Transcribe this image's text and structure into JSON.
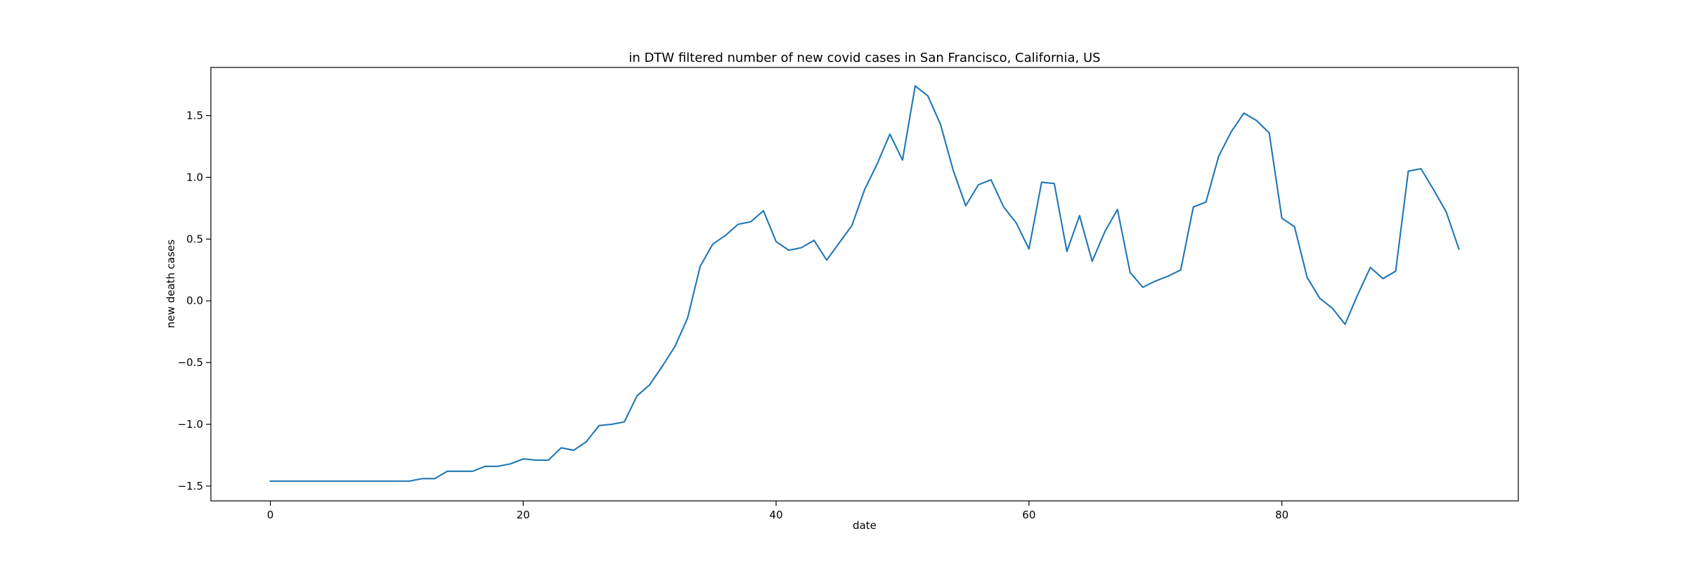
{
  "chart_data": {
    "type": "line",
    "title": "in DTW filtered number of new covid cases in San Francisco, California, US",
    "xlabel": "date",
    "ylabel": "new death cases",
    "xlim": [
      -4.7,
      98.7
    ],
    "ylim": [
      -1.62,
      1.89
    ],
    "xticks": [
      0,
      20,
      40,
      60,
      80
    ],
    "xtick_labels": [
      "0",
      "20",
      "40",
      "60",
      "80"
    ],
    "yticks": [
      -1.5,
      -1.0,
      -0.5,
      0.0,
      0.5,
      1.0,
      1.5
    ],
    "ytick_labels": [
      "−1.5",
      "−1.0",
      "−0.5",
      "0.0",
      "0.5",
      "1.0",
      "1.5"
    ],
    "grid": false,
    "series": [
      {
        "color": "#1f77b4",
        "x": [
          0,
          1,
          2,
          3,
          4,
          5,
          6,
          7,
          8,
          9,
          10,
          11,
          12,
          13,
          14,
          15,
          16,
          17,
          18,
          19,
          20,
          21,
          22,
          23,
          24,
          25,
          26,
          27,
          28,
          29,
          30,
          31,
          32,
          33,
          34,
          35,
          36,
          37,
          38,
          39,
          40,
          41,
          42,
          43,
          44,
          45,
          46,
          47,
          48,
          49,
          50,
          51,
          52,
          53,
          54,
          55,
          56,
          57,
          58,
          59,
          60,
          61,
          62,
          63,
          64,
          65,
          66,
          67,
          68,
          69,
          70,
          71,
          72,
          73,
          74,
          75,
          76,
          77,
          78,
          79,
          80,
          81,
          82,
          83,
          84,
          85,
          86,
          87,
          88,
          89,
          90,
          91,
          92,
          93,
          94
        ],
        "y": [
          -1.46,
          -1.46,
          -1.46,
          -1.46,
          -1.46,
          -1.46,
          -1.46,
          -1.46,
          -1.46,
          -1.46,
          -1.46,
          -1.46,
          -1.44,
          -1.44,
          -1.38,
          -1.38,
          -1.38,
          -1.34,
          -1.34,
          -1.32,
          -1.28,
          -1.29,
          -1.29,
          -1.19,
          -1.21,
          -1.14,
          -1.01,
          -1.0,
          -0.98,
          -0.77,
          -0.68,
          -0.53,
          -0.37,
          -0.14,
          0.28,
          0.46,
          0.53,
          0.62,
          0.64,
          0.73,
          0.48,
          0.41,
          0.43,
          0.49,
          0.33,
          0.47,
          0.61,
          0.9,
          1.11,
          1.35,
          1.14,
          1.74,
          1.66,
          1.43,
          1.06,
          0.77,
          0.94,
          0.98,
          0.76,
          0.63,
          0.42,
          0.96,
          0.95,
          0.4,
          0.69,
          0.32,
          0.56,
          0.74,
          0.23,
          0.11,
          0.16,
          0.2,
          0.25,
          0.76,
          0.8,
          1.17,
          1.37,
          1.52,
          1.46,
          1.36,
          0.67,
          0.6,
          0.19,
          0.02,
          -0.06,
          -0.19,
          0.05,
          0.27,
          0.18,
          0.24,
          1.05,
          1.07,
          0.9,
          0.72,
          0.42
        ]
      }
    ]
  }
}
